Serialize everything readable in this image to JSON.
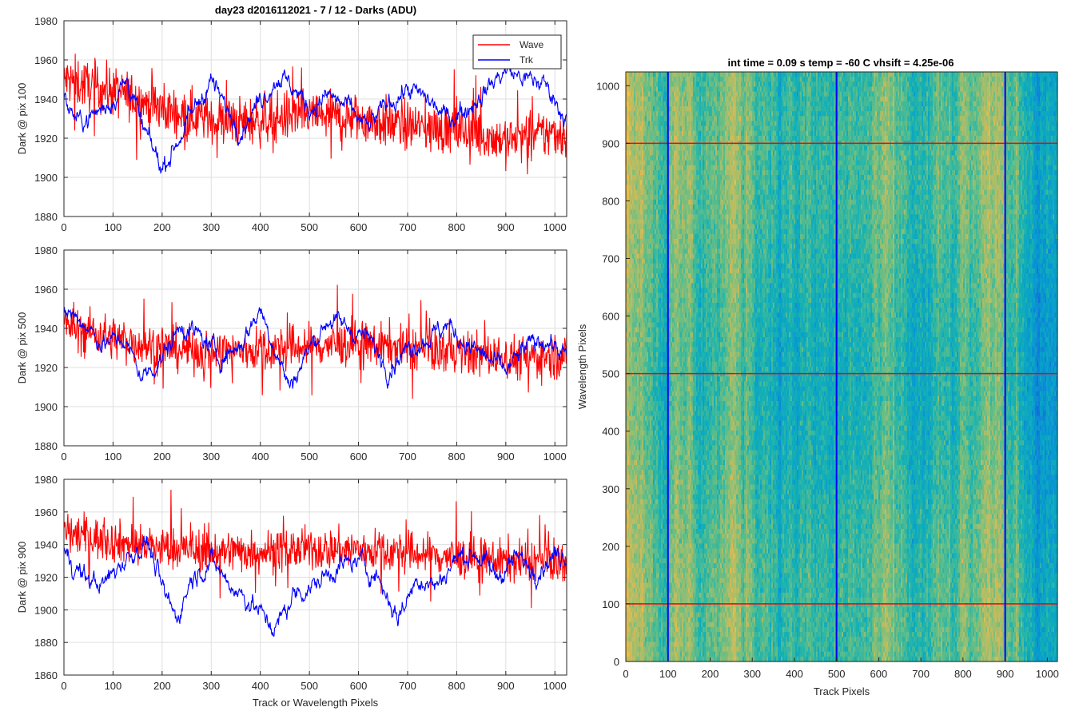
{
  "figure": {
    "title": "day23 d2016112021 - 7 / 12 - Darks (ADU)",
    "image_title": "int time = 0.09 s    temp = -60 C    vhsift = 4.25e-06"
  },
  "colors": {
    "wave": "#ff0000",
    "trk": "#0000ff",
    "grid": "#dfdfdf",
    "axis": "#262626"
  },
  "chart_data": [
    {
      "type": "line",
      "ylabel": "Dark @ pix 100",
      "xlabel": "",
      "xlim": [
        0,
        1024
      ],
      "ylim": [
        1880,
        1980
      ],
      "xticks": [
        0,
        100,
        200,
        300,
        400,
        500,
        600,
        700,
        800,
        900,
        1000
      ],
      "yticks": [
        1880,
        1900,
        1920,
        1940,
        1960,
        1980
      ],
      "grid": true,
      "legend": {
        "location": "top-right",
        "entries": [
          "Wave",
          "Trk"
        ]
      },
      "series": [
        {
          "name": "Wave",
          "color": "#ff0000",
          "x": [
            0,
            50,
            100,
            150,
            200,
            250,
            300,
            350,
            400,
            450,
            500,
            550,
            600,
            650,
            700,
            750,
            800,
            850,
            900,
            950,
            1000,
            1024
          ],
          "y": [
            1950,
            1947,
            1944,
            1940,
            1935,
            1932,
            1930,
            1928,
            1929,
            1931,
            1932,
            1931,
            1930,
            1928,
            1926,
            1925,
            1924,
            1922,
            1919,
            1921,
            1923,
            1922
          ],
          "noise": 9
        },
        {
          "name": "Trk",
          "color": "#0000ff",
          "x": [
            0,
            30,
            60,
            100,
            130,
            160,
            180,
            200,
            230,
            260,
            300,
            330,
            360,
            400,
            440,
            470,
            500,
            540,
            580,
            620,
            660,
            700,
            740,
            780,
            820,
            860,
            900,
            940,
            980,
            1000,
            1024
          ],
          "y": [
            1940,
            1928,
            1932,
            1940,
            1950,
            1925,
            1915,
            1905,
            1918,
            1932,
            1950,
            1935,
            1925,
            1940,
            1952,
            1945,
            1935,
            1942,
            1935,
            1925,
            1938,
            1945,
            1940,
            1930,
            1935,
            1945,
            1955,
            1950,
            1948,
            1940,
            1930
          ],
          "noise": 4
        }
      ]
    },
    {
      "type": "line",
      "ylabel": "Dark @ pix 500",
      "xlabel": "",
      "xlim": [
        0,
        1024
      ],
      "ylim": [
        1880,
        1980
      ],
      "xticks": [
        0,
        100,
        200,
        300,
        400,
        500,
        600,
        700,
        800,
        900,
        1000
      ],
      "yticks": [
        1880,
        1900,
        1920,
        1940,
        1960,
        1980
      ],
      "grid": true,
      "series": [
        {
          "name": "Wave",
          "color": "#ff0000",
          "x": [
            0,
            100,
            200,
            300,
            400,
            500,
            600,
            700,
            800,
            900,
            1000,
            1024
          ],
          "y": [
            1942,
            1935,
            1930,
            1928,
            1929,
            1931,
            1932,
            1930,
            1928,
            1925,
            1926,
            1925
          ],
          "noise": 8
        },
        {
          "name": "Trk",
          "color": "#0000ff",
          "x": [
            0,
            40,
            80,
            120,
            160,
            200,
            240,
            280,
            320,
            360,
            400,
            430,
            460,
            500,
            540,
            580,
            620,
            660,
            700,
            740,
            780,
            820,
            860,
            900,
            940,
            980,
            1024
          ],
          "y": [
            1950,
            1943,
            1932,
            1935,
            1915,
            1925,
            1942,
            1935,
            1925,
            1932,
            1950,
            1930,
            1910,
            1930,
            1945,
            1940,
            1935,
            1920,
            1930,
            1935,
            1942,
            1932,
            1925,
            1918,
            1930,
            1935,
            1925
          ],
          "noise": 4
        }
      ]
    },
    {
      "type": "line",
      "ylabel": "Dark @ pix 900",
      "xlabel": "Track or Wavelength Pixels",
      "xlim": [
        0,
        1024
      ],
      "ylim": [
        1860,
        1980
      ],
      "xticks": [
        0,
        100,
        200,
        300,
        400,
        500,
        600,
        700,
        800,
        900,
        1000
      ],
      "yticks": [
        1860,
        1880,
        1900,
        1920,
        1940,
        1960,
        1980
      ],
      "grid": true,
      "series": [
        {
          "name": "Wave",
          "color": "#ff0000",
          "x": [
            0,
            100,
            200,
            300,
            400,
            500,
            600,
            700,
            800,
            900,
            1000,
            1024
          ],
          "y": [
            1948,
            1942,
            1938,
            1936,
            1936,
            1937,
            1937,
            1935,
            1932,
            1930,
            1930,
            1929
          ],
          "noise": 9
        },
        {
          "name": "Trk",
          "color": "#0000ff",
          "x": [
            0,
            40,
            80,
            120,
            170,
            200,
            230,
            260,
            300,
            340,
            380,
            430,
            470,
            510,
            550,
            600,
            640,
            680,
            720,
            760,
            800,
            840,
            880,
            920,
            960,
            1000,
            1024
          ],
          "y": [
            1935,
            1920,
            1915,
            1930,
            1942,
            1912,
            1895,
            1920,
            1930,
            1915,
            1905,
            1888,
            1910,
            1915,
            1925,
            1930,
            1920,
            1895,
            1920,
            1915,
            1932,
            1935,
            1920,
            1932,
            1925,
            1933,
            1935
          ],
          "noise": 5
        }
      ]
    },
    {
      "type": "heatmap",
      "title": "int time = 0.09 s    temp = -60 C    vhsift = 4.25e-06",
      "xlabel": "Track Pixels",
      "ylabel": "Wavelength Pixels",
      "xlim": [
        0,
        1024
      ],
      "ylim": [
        0,
        1024
      ],
      "xticks": [
        0,
        100,
        200,
        300,
        400,
        500,
        600,
        700,
        800,
        900,
        1000
      ],
      "yticks": [
        0,
        100,
        200,
        300,
        400,
        500,
        600,
        700,
        800,
        900,
        1000
      ],
      "colormap": "parula",
      "overlays": {
        "vertical_lines": {
          "x": [
            100,
            500,
            900
          ],
          "color": "#0000ff"
        },
        "horizontal_lines": {
          "y": [
            100,
            500,
            900
          ],
          "color": "#ff0000"
        }
      }
    }
  ]
}
